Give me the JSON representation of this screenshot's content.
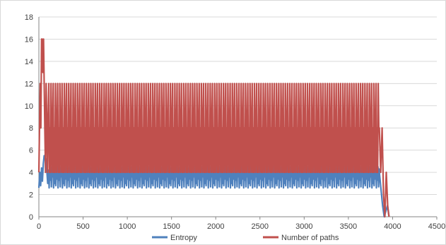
{
  "chart_data": {
    "type": "line",
    "title": "",
    "xlabel": "",
    "ylabel": "",
    "xlim": [
      0,
      4500
    ],
    "ylim": [
      0,
      18
    ],
    "x_ticks": [
      0,
      500,
      1000,
      1500,
      2000,
      2500,
      3000,
      3500,
      4000,
      4500
    ],
    "y_ticks": [
      0,
      2,
      4,
      6,
      8,
      10,
      12,
      14,
      16,
      18
    ],
    "grid": "horizontal",
    "legend_position": "bottom",
    "series": [
      {
        "name": "Entropy",
        "color": "#4F81BD",
        "period": 100,
        "x_start": 0,
        "x_end": 3960,
        "cycle_pattern": [
          2.6,
          4.1,
          3.3,
          4.5,
          2.7,
          4.3,
          3.6,
          5.0,
          2.6,
          4.0,
          3.0,
          4.4,
          2.8,
          4.6,
          3.4,
          4.9
        ],
        "segments": [
          {
            "x": 0,
            "values": [
              2.6,
              4.0,
              2.8,
              4.4,
              3.2,
              4.8,
              5.5,
              5.4,
              5.2,
              4.1,
              3.0,
              4.2
            ]
          },
          {
            "x": 3850,
            "values": [
              4.0,
              2.5,
              1.0,
              0,
              0.5,
              1.0,
              0
            ]
          }
        ]
      },
      {
        "name": "Number of paths",
        "color": "#C0504D",
        "period": 100,
        "x_start": 0,
        "x_end": 3960,
        "cycle_pattern": [
          4,
          8,
          4,
          12,
          8,
          4,
          8,
          12,
          4,
          8,
          4,
          12,
          8,
          4,
          8,
          12
        ],
        "segments": [
          {
            "x": 0,
            "values": [
              4,
              8,
              12,
              8,
              16,
              16,
              13,
              16,
              12,
              8,
              4,
              12,
              8,
              4,
              9,
              12
            ]
          },
          {
            "x": 3850,
            "values": [
              8,
              4,
              8,
              2,
              0,
              4,
              1,
              0
            ]
          }
        ]
      }
    ]
  }
}
